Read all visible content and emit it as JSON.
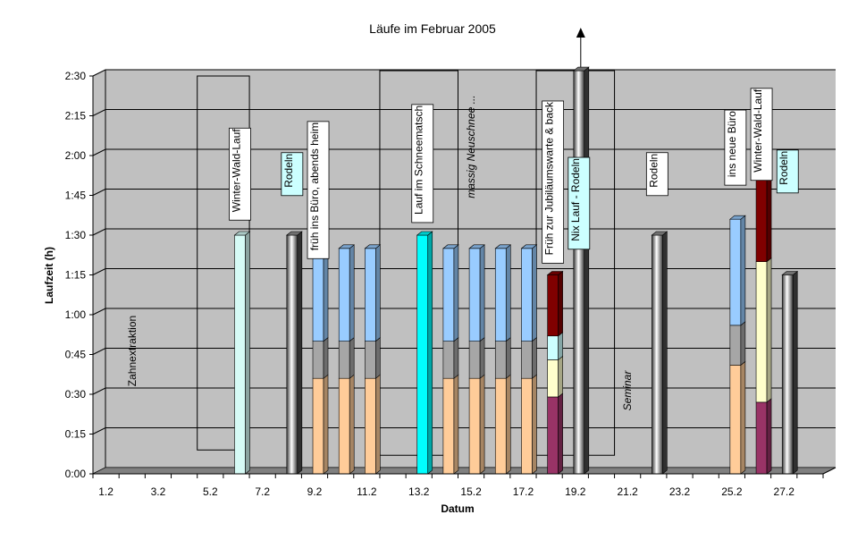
{
  "chart_data": {
    "type": "bar",
    "stacked": true,
    "three_d": true,
    "title": "Läufe im Februar 2005",
    "xlabel": "Datum",
    "ylabel": "Laufzeit (h)",
    "y_unit": "minutes",
    "ylim": [
      0,
      150
    ],
    "y_ticks": [
      {
        "value": 0,
        "label": "0:00"
      },
      {
        "value": 15,
        "label": "0:15"
      },
      {
        "value": 30,
        "label": "0:30"
      },
      {
        "value": 45,
        "label": "0:45"
      },
      {
        "value": 60,
        "label": "1:00"
      },
      {
        "value": 75,
        "label": "1:15"
      },
      {
        "value": 90,
        "label": "1:30"
      },
      {
        "value": 105,
        "label": "1:45"
      },
      {
        "value": 120,
        "label": "2:00"
      },
      {
        "value": 135,
        "label": "2:15"
      },
      {
        "value": 150,
        "label": "2:30"
      }
    ],
    "grid": true,
    "categories": [
      "1.2",
      "2.2",
      "3.2",
      "4.2",
      "5.2",
      "6.2",
      "7.2",
      "8.2",
      "9.2",
      "10.2",
      "11.2",
      "12.2",
      "13.2",
      "14.2",
      "15.2",
      "16.2",
      "17.2",
      "18.2",
      "19.2",
      "20.2",
      "21.2",
      "22.2",
      "23.2",
      "24.2",
      "25.2",
      "26.2",
      "27.2",
      "28.2"
    ],
    "x_tick_labels": [
      "1.2",
      "3.2",
      "5.2",
      "7.2",
      "9.2",
      "11.2",
      "13.2",
      "15.2",
      "17.2",
      "19.2",
      "21.2",
      "23.2",
      "25.2",
      "27.2"
    ],
    "bars": [
      {
        "day": "6.2",
        "segments": [
          {
            "value": 90,
            "color": "#d6fbf6"
          }
        ]
      },
      {
        "day": "8.2",
        "segments": [
          {
            "value": 90,
            "color": "#bdbdbd",
            "style": "gray-gradient"
          }
        ]
      },
      {
        "day": "9.2",
        "segments": [
          {
            "value": 36,
            "color": "#ffcc99"
          },
          {
            "value": 14,
            "color": "#a6a6a6"
          },
          {
            "value": 35,
            "color": "#99ccff"
          }
        ]
      },
      {
        "day": "10.2",
        "segments": [
          {
            "value": 36,
            "color": "#ffcc99"
          },
          {
            "value": 14,
            "color": "#a6a6a6"
          },
          {
            "value": 35,
            "color": "#99ccff"
          }
        ]
      },
      {
        "day": "11.2",
        "segments": [
          {
            "value": 36,
            "color": "#ffcc99"
          },
          {
            "value": 14,
            "color": "#a6a6a6"
          },
          {
            "value": 35,
            "color": "#99ccff"
          }
        ]
      },
      {
        "day": "13.2",
        "segments": [
          {
            "value": 90,
            "color": "#00ffff"
          }
        ]
      },
      {
        "day": "14.2",
        "segments": [
          {
            "value": 36,
            "color": "#ffcc99"
          },
          {
            "value": 14,
            "color": "#a6a6a6"
          },
          {
            "value": 35,
            "color": "#99ccff"
          }
        ]
      },
      {
        "day": "15.2",
        "segments": [
          {
            "value": 36,
            "color": "#ffcc99"
          },
          {
            "value": 14,
            "color": "#a6a6a6"
          },
          {
            "value": 35,
            "color": "#99ccff"
          }
        ]
      },
      {
        "day": "16.2",
        "segments": [
          {
            "value": 36,
            "color": "#ffcc99"
          },
          {
            "value": 14,
            "color": "#a6a6a6"
          },
          {
            "value": 35,
            "color": "#99ccff"
          }
        ]
      },
      {
        "day": "17.2",
        "segments": [
          {
            "value": 36,
            "color": "#ffcc99"
          },
          {
            "value": 14,
            "color": "#a6a6a6"
          },
          {
            "value": 35,
            "color": "#99ccff"
          }
        ]
      },
      {
        "day": "18.2",
        "segments": [
          {
            "value": 29,
            "color": "#993366"
          },
          {
            "value": 14,
            "color": "#ffffcc"
          },
          {
            "value": 9,
            "color": "#ccffff"
          },
          {
            "value": 23,
            "color": "#800000"
          }
        ]
      },
      {
        "day": "19.2",
        "segments": [
          {
            "value": 152,
            "color": "#bdbdbd",
            "style": "gray-gradient"
          }
        ],
        "overflow_arrow": true
      },
      {
        "day": "22.2",
        "segments": [
          {
            "value": 90,
            "color": "#bdbdbd",
            "style": "gray-gradient"
          }
        ]
      },
      {
        "day": "25.2",
        "segments": [
          {
            "value": 41,
            "color": "#ffcc99"
          },
          {
            "value": 15,
            "color": "#a6a6a6"
          },
          {
            "value": 40,
            "color": "#99ccff"
          }
        ]
      },
      {
        "day": "26.2",
        "segments": [
          {
            "value": 27,
            "color": "#993366"
          },
          {
            "value": 53,
            "color": "#ffffcc"
          },
          {
            "value": 33,
            "color": "#800000"
          }
        ]
      },
      {
        "day": "27.2",
        "segments": [
          {
            "value": 75,
            "color": "#bdbdbd",
            "style": "gray-gradient"
          }
        ]
      }
    ],
    "annotations": [
      {
        "text": "Winter-Wald-Lauf",
        "day": "6.2",
        "value": 113,
        "boxed": true
      },
      {
        "text": "Rodeln",
        "day": "8.2",
        "value": 113,
        "boxed": true,
        "fill": "#ccffff"
      },
      {
        "text": "früh ins Büro, abends heim",
        "day": "9.2",
        "value": 107,
        "boxed": true
      },
      {
        "text": "Lauf im Schneematsch",
        "day": "13.2",
        "value": 117,
        "boxed": true
      },
      {
        "text": "massig Neuschnee ...",
        "day": "15.7",
        "value": 122,
        "boxed": false,
        "italic": true
      },
      {
        "text": "Früh zur Jubiläumswarte & back",
        "day": "18.2",
        "value": 110,
        "boxed": true
      },
      {
        "text": "Nix Lauf - Rodeln",
        "day": "19.2",
        "value": 102,
        "boxed": true,
        "fill": "#ccffff"
      },
      {
        "text": "Rodeln",
        "day": "22.2",
        "value": 113,
        "boxed": true
      },
      {
        "text": "ins neue Büro",
        "day": "25.2",
        "value": 123,
        "boxed": true
      },
      {
        "text": "Winter-Wald-Lauf",
        "day": "26.2",
        "value": 128,
        "boxed": true
      },
      {
        "text": "Rodeln",
        "day": "27.2",
        "value": 114,
        "boxed": true,
        "fill": "#ccffff"
      },
      {
        "text": "Zahnextraktion",
        "day": "2.2",
        "value": 45,
        "boxed": false
      },
      {
        "text": "Seminar",
        "day": "21.2",
        "value": 30,
        "boxed": false,
        "italic": true
      }
    ],
    "frames": [
      {
        "from_day": "5.2",
        "to_day": "6.7",
        "from_value": 9,
        "to_value": 150
      },
      {
        "from_day": "12.2",
        "to_day": "14.9",
        "from_value": 7,
        "to_value": 152
      },
      {
        "from_day": "18.2",
        "to_day": "20.3",
        "from_value": 7,
        "to_value": 152
      }
    ],
    "colors": {
      "wall": "#c0c0c0",
      "grid": "#000000",
      "floor": "#808080",
      "frame": "#000000"
    }
  }
}
